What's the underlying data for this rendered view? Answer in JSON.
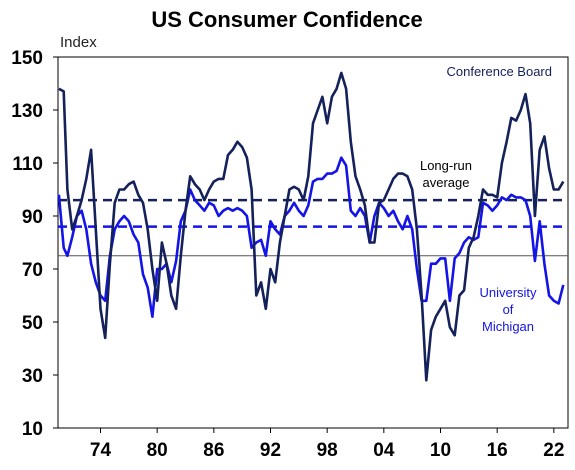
{
  "chart_data": {
    "type": "line",
    "title": "US Consumer Confidence",
    "ylabel": "Index",
    "xlim": [
      1970.0,
      2024.0
    ],
    "ylim": [
      10,
      150
    ],
    "y_ticks": [
      10,
      30,
      50,
      70,
      90,
      110,
      130,
      150
    ],
    "x_ticks": [
      {
        "label": "74",
        "year": 1974
      },
      {
        "label": "80",
        "year": 1980
      },
      {
        "label": "86",
        "year": 1986
      },
      {
        "label": "92",
        "year": 1992
      },
      {
        "label": "98",
        "year": 1998
      },
      {
        "label": "04",
        "year": 2004
      },
      {
        "label": "10",
        "year": 2010
      },
      {
        "label": "16",
        "year": 2016
      },
      {
        "label": "22",
        "year": 2022
      }
    ],
    "grid": false,
    "reference_line": 75,
    "annotations": {
      "conference_board": "Conference Board",
      "long_run_line1": "Long-run",
      "long_run_line2": "average",
      "michigan_line1": "University",
      "michigan_line2": "of",
      "michigan_line3": "Michigan"
    },
    "series": [
      {
        "name": "Conference Board",
        "color": "#14215a",
        "long_run_average": 96,
        "x": [
          1970.1,
          1970.6,
          1971.0,
          1971.5,
          1972.0,
          1972.5,
          1973.0,
          1973.5,
          1974.0,
          1974.5,
          1975.0,
          1975.5,
          1976.0,
          1976.5,
          1977.0,
          1977.5,
          1978.0,
          1978.5,
          1979.0,
          1979.5,
          1980.0,
          1980.5,
          1981.0,
          1981.5,
          1982.0,
          1982.5,
          1983.0,
          1983.5,
          1984.0,
          1984.5,
          1985.0,
          1985.5,
          1986.0,
          1986.5,
          1987.0,
          1987.5,
          1988.0,
          1988.5,
          1989.0,
          1989.5,
          1990.0,
          1990.5,
          1991.0,
          1991.5,
          1992.0,
          1992.5,
          1993.0,
          1993.5,
          1994.0,
          1994.5,
          1995.0,
          1995.5,
          1996.0,
          1996.5,
          1997.0,
          1997.5,
          1998.0,
          1998.5,
          1999.0,
          1999.5,
          2000.0,
          2000.5,
          2001.0,
          2001.5,
          2002.0,
          2002.5,
          2003.0,
          2003.5,
          2004.0,
          2004.5,
          2005.0,
          2005.5,
          2006.0,
          2006.5,
          2007.0,
          2007.5,
          2008.0,
          2008.5,
          2009.0,
          2009.5,
          2010.0,
          2010.5,
          2011.0,
          2011.5,
          2012.0,
          2012.5,
          2013.0,
          2013.5,
          2014.0,
          2014.5,
          2015.0,
          2015.5,
          2016.0,
          2016.5,
          2017.0,
          2017.5,
          2018.0,
          2018.5,
          2019.0,
          2019.5,
          2020.0,
          2020.5,
          2021.0,
          2021.5,
          2022.0,
          2022.5,
          2023.0,
          2023.5
        ],
        "values": [
          138,
          137,
          100,
          85,
          90,
          96,
          104,
          115,
          85,
          55,
          44,
          72,
          95,
          100,
          100,
          102,
          103,
          98,
          95,
          85,
          70,
          58,
          80,
          72,
          60,
          55,
          75,
          92,
          105,
          102,
          100,
          96,
          100,
          103,
          104,
          104,
          113,
          115,
          118,
          116,
          112,
          100,
          60,
          65,
          55,
          70,
          65,
          80,
          90,
          100,
          101,
          100,
          96,
          105,
          125,
          130,
          135,
          125,
          135,
          138,
          144,
          138,
          118,
          105,
          100,
          94,
          80,
          80,
          95,
          96,
          100,
          104,
          106,
          106,
          105,
          100,
          85,
          60,
          28,
          47,
          52,
          55,
          58,
          48,
          45,
          60,
          62,
          78,
          82,
          90,
          100,
          98,
          98,
          97,
          110,
          118,
          127,
          126,
          130,
          136,
          125,
          90,
          115,
          120,
          108,
          100,
          100,
          103
        ]
      },
      {
        "name": "University of Michigan",
        "color": "#1414e6",
        "long_run_average": 86,
        "x": [
          1970.1,
          1970.6,
          1971.0,
          1971.5,
          1972.0,
          1972.5,
          1973.0,
          1973.5,
          1974.0,
          1974.5,
          1975.0,
          1975.5,
          1976.0,
          1976.5,
          1977.0,
          1977.5,
          1978.0,
          1978.5,
          1979.0,
          1979.5,
          1980.0,
          1980.5,
          1981.0,
          1981.5,
          1982.0,
          1982.5,
          1983.0,
          1983.5,
          1984.0,
          1984.5,
          1985.0,
          1985.5,
          1986.0,
          1986.5,
          1987.0,
          1987.5,
          1988.0,
          1988.5,
          1989.0,
          1989.5,
          1990.0,
          1990.5,
          1991.0,
          1991.5,
          1992.0,
          1992.5,
          1993.0,
          1993.5,
          1994.0,
          1994.5,
          1995.0,
          1995.5,
          1996.0,
          1996.5,
          1997.0,
          1997.5,
          1998.0,
          1998.5,
          1999.0,
          1999.5,
          2000.0,
          2000.5,
          2001.0,
          2001.5,
          2002.0,
          2002.5,
          2003.0,
          2003.5,
          2004.0,
          2004.5,
          2005.0,
          2005.5,
          2006.0,
          2006.5,
          2007.0,
          2007.5,
          2008.0,
          2008.5,
          2009.0,
          2009.5,
          2010.0,
          2010.5,
          2011.0,
          2011.5,
          2012.0,
          2012.5,
          2013.0,
          2013.5,
          2014.0,
          2014.5,
          2015.0,
          2015.5,
          2016.0,
          2016.5,
          2017.0,
          2017.5,
          2018.0,
          2018.5,
          2019.0,
          2019.5,
          2020.0,
          2020.5,
          2021.0,
          2021.5,
          2022.0,
          2022.5,
          2023.0,
          2023.5
        ],
        "values": [
          98,
          78,
          75,
          82,
          90,
          92,
          85,
          72,
          65,
          60,
          58,
          75,
          85,
          88,
          90,
          88,
          83,
          80,
          68,
          63,
          52,
          70,
          70,
          72,
          65,
          73,
          88,
          92,
          100,
          96,
          94,
          92,
          95,
          94,
          90,
          92,
          93,
          92,
          93,
          92,
          90,
          78,
          80,
          81,
          75,
          88,
          85,
          83,
          90,
          92,
          95,
          92,
          90,
          94,
          103,
          104,
          104,
          106,
          106,
          107,
          112,
          109,
          92,
          90,
          93,
          90,
          80,
          90,
          95,
          93,
          90,
          92,
          88,
          85,
          90,
          85,
          70,
          58,
          58,
          72,
          72,
          74,
          74,
          58,
          74,
          76,
          80,
          82,
          81,
          82,
          95,
          94,
          92,
          94,
          97,
          96,
          98,
          97,
          97,
          96,
          90,
          73,
          88,
          72,
          60,
          58,
          57,
          64
        ]
      }
    ]
  }
}
